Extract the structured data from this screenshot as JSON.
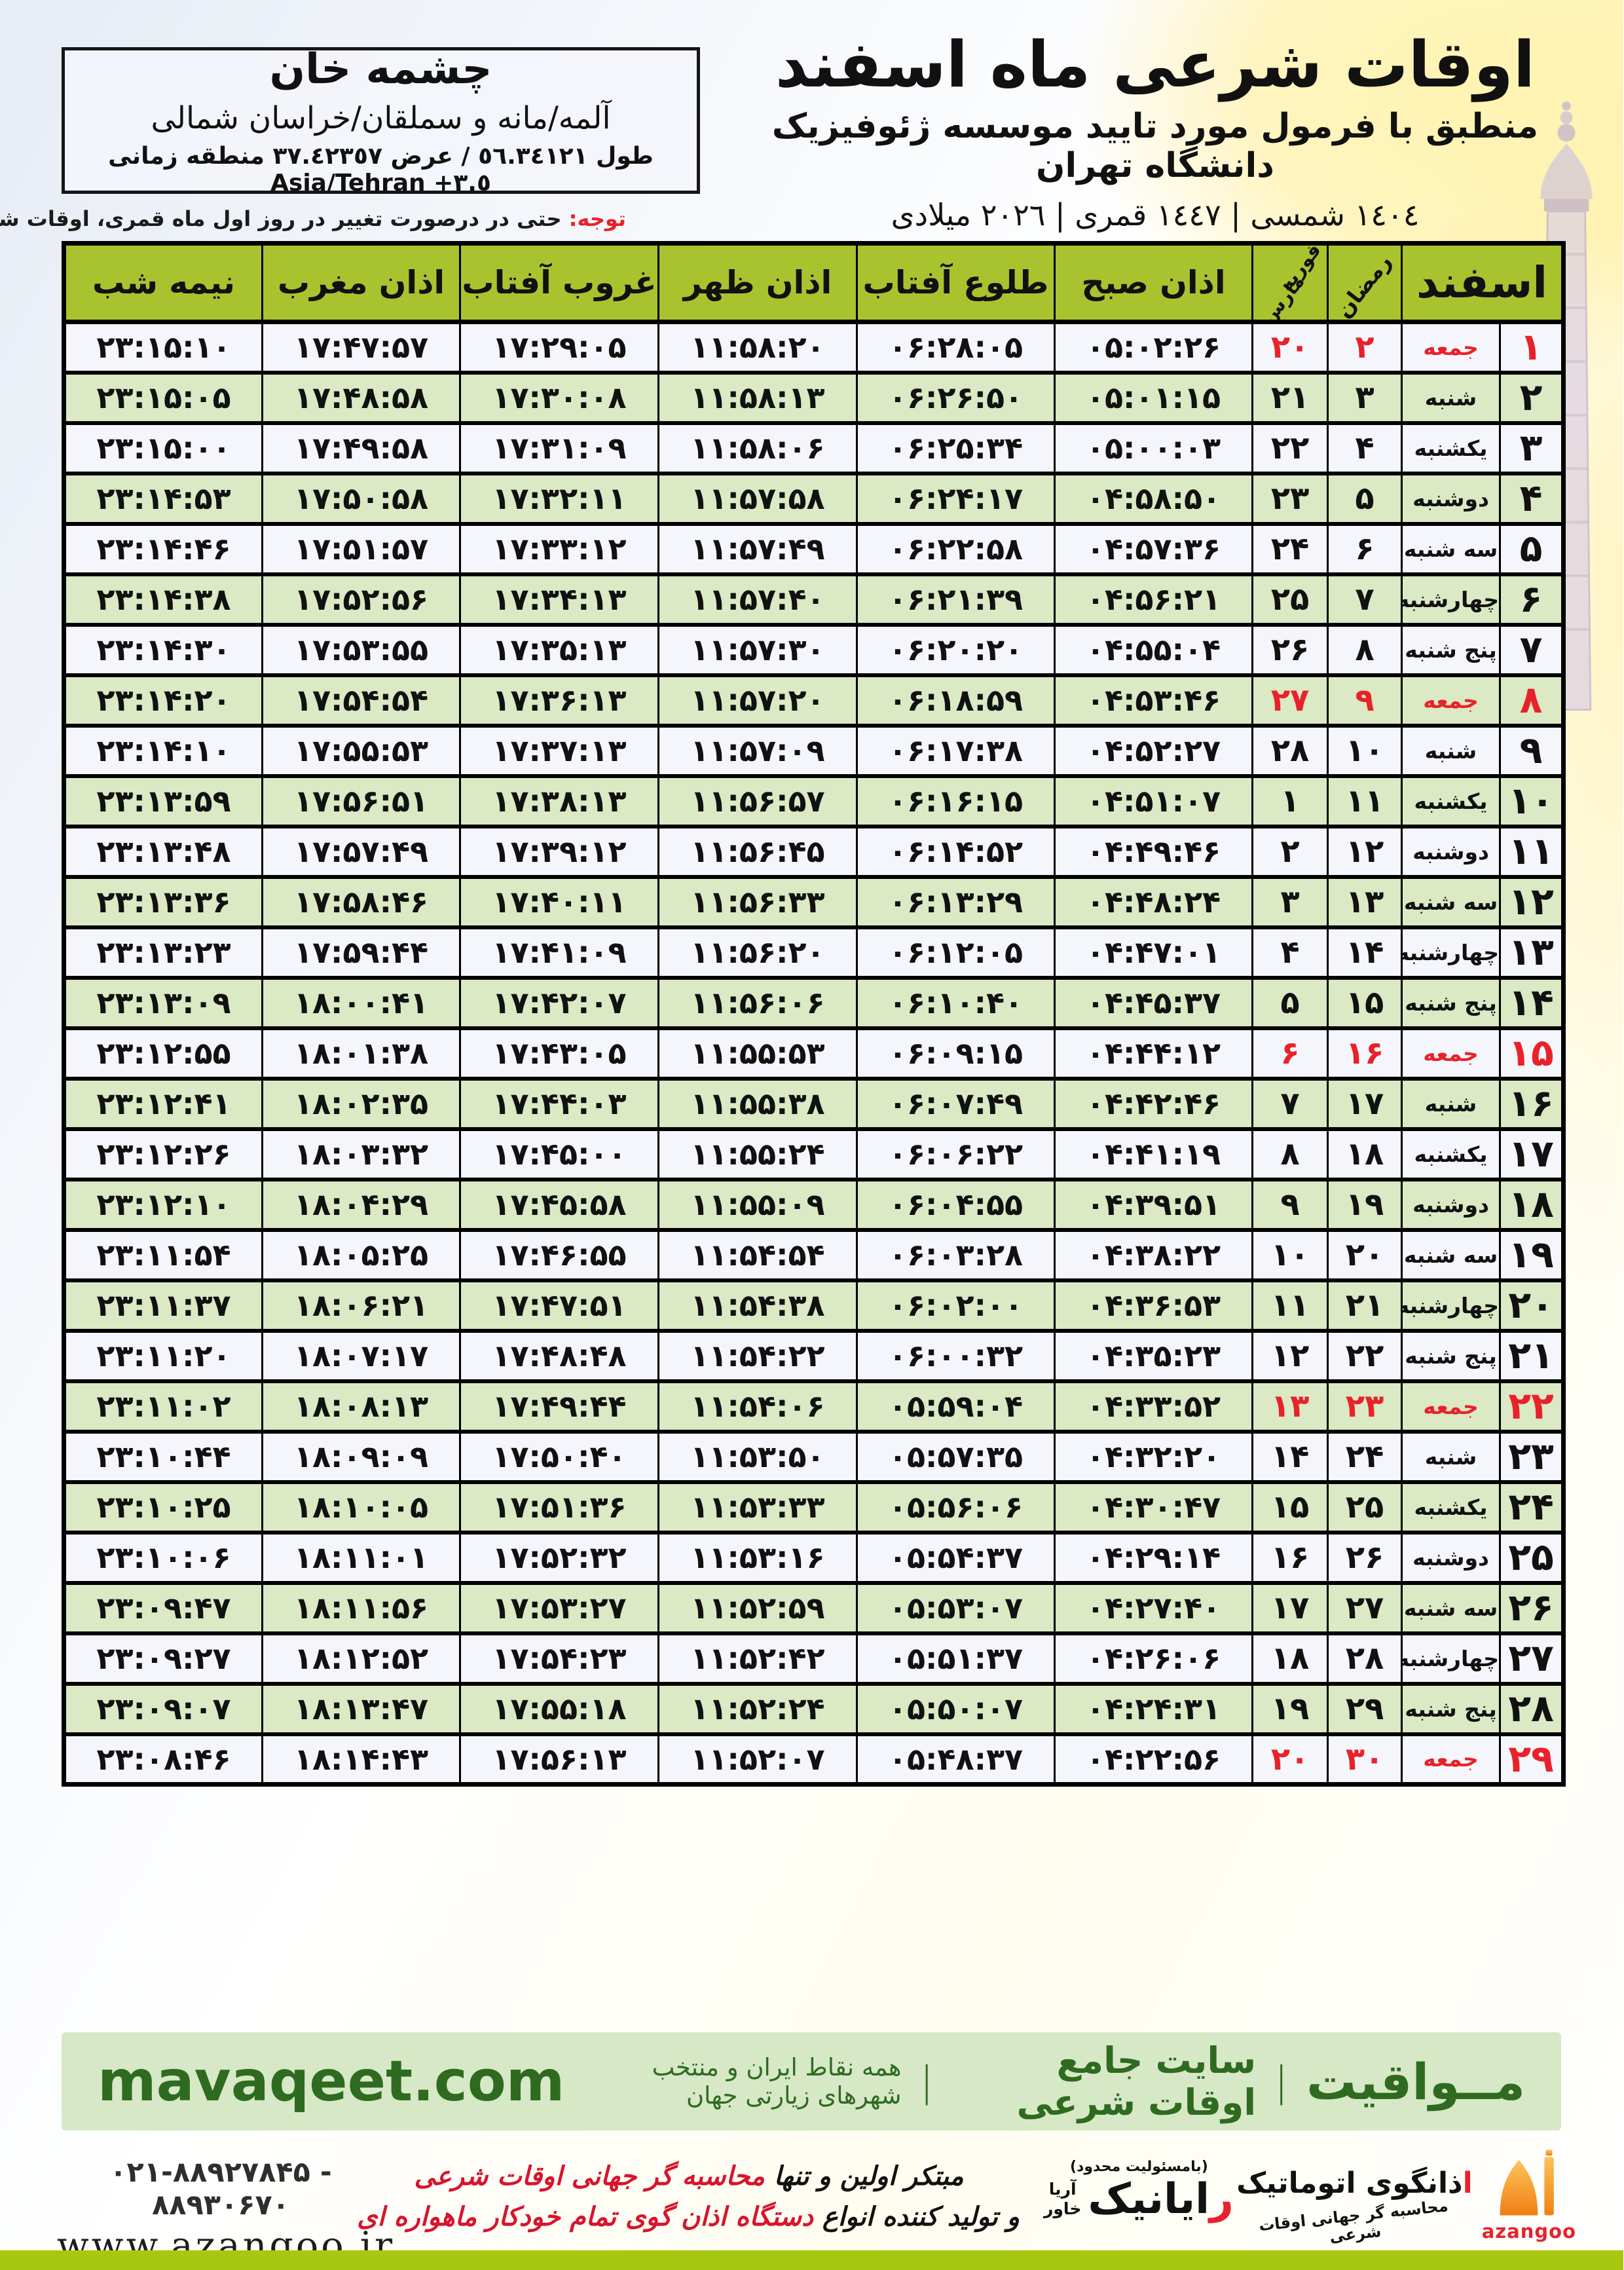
{
  "header": {
    "title": "اوقات شرعی ماه اسفند",
    "subtitle": "منطبق با فرمول مورد تایید موسسه ژئوفیزیک دانشگاه تهران",
    "years": "١٤٠٤ شمسی | ١٤٤٧ قمری | ٢٠٢٦ میلادی"
  },
  "location": {
    "name": "چشمه خان",
    "region": "آلمه/مانه و سملقان/خراسان شمالی",
    "coords": "طول ٥٦.٣٤١٢١ / عرض ٣٧.٤٢٣٥٧ منطقه زمانی",
    "timezone": "Asia/Tehran +٣.٥"
  },
  "notice": {
    "label": "توجه:",
    "text": " حتی در درصورت تغییر در روز اول ماه قمری، اوقات شرعی کماکان برای روزهای شمسی و میلادی معتبر است."
  },
  "table": {
    "headers": {
      "esfand": "اسفند",
      "ramadan": "رمضان",
      "feb": "فوریه",
      "mar": "مارس",
      "fajr": "اذان صبح",
      "sunrise": "طلوع آفتاب",
      "dhuhr": "اذان ظهر",
      "sunset": "غروب آفتاب",
      "maghrib": "اذان مغرب",
      "midnight": "نیمه شب"
    },
    "rows": [
      {
        "esfand": "۱",
        "weekday": "جمعه",
        "ramadan": "۲",
        "feb_mar": "۲۰",
        "fajr": "۰۵:۰۲:۲۶",
        "sunrise": "۰۶:۲۸:۰۵",
        "dhuhr": "۱۱:۵۸:۲۰",
        "sunset": "۱۷:۲۹:۰۵",
        "maghrib": "۱۷:۴۷:۵۷",
        "midnight": "۲۳:۱۵:۱۰",
        "holiday": true
      },
      {
        "esfand": "۲",
        "weekday": "شنبه",
        "ramadan": "۳",
        "feb_mar": "۲۱",
        "fajr": "۰۵:۰۱:۱۵",
        "sunrise": "۰۶:۲۶:۵۰",
        "dhuhr": "۱۱:۵۸:۱۳",
        "sunset": "۱۷:۳۰:۰۸",
        "maghrib": "۱۷:۴۸:۵۸",
        "midnight": "۲۳:۱۵:۰۵",
        "holiday": false
      },
      {
        "esfand": "۳",
        "weekday": "یکشنبه",
        "ramadan": "۴",
        "feb_mar": "۲۲",
        "fajr": "۰۵:۰۰:۰۳",
        "sunrise": "۰۶:۲۵:۳۴",
        "dhuhr": "۱۱:۵۸:۰۶",
        "sunset": "۱۷:۳۱:۰۹",
        "maghrib": "۱۷:۴۹:۵۸",
        "midnight": "۲۳:۱۵:۰۰",
        "holiday": false
      },
      {
        "esfand": "۴",
        "weekday": "دوشنبه",
        "ramadan": "۵",
        "feb_mar": "۲۳",
        "fajr": "۰۴:۵۸:۵۰",
        "sunrise": "۰۶:۲۴:۱۷",
        "dhuhr": "۱۱:۵۷:۵۸",
        "sunset": "۱۷:۳۲:۱۱",
        "maghrib": "۱۷:۵۰:۵۸",
        "midnight": "۲۳:۱۴:۵۳",
        "holiday": false
      },
      {
        "esfand": "۵",
        "weekday": "سه شنبه",
        "ramadan": "۶",
        "feb_mar": "۲۴",
        "fajr": "۰۴:۵۷:۳۶",
        "sunrise": "۰۶:۲۲:۵۸",
        "dhuhr": "۱۱:۵۷:۴۹",
        "sunset": "۱۷:۳۳:۱۲",
        "maghrib": "۱۷:۵۱:۵۷",
        "midnight": "۲۳:۱۴:۴۶",
        "holiday": false
      },
      {
        "esfand": "۶",
        "weekday": "چهارشنبه",
        "ramadan": "۷",
        "feb_mar": "۲۵",
        "fajr": "۰۴:۵۶:۲۱",
        "sunrise": "۰۶:۲۱:۳۹",
        "dhuhr": "۱۱:۵۷:۴۰",
        "sunset": "۱۷:۳۴:۱۳",
        "maghrib": "۱۷:۵۲:۵۶",
        "midnight": "۲۳:۱۴:۳۸",
        "holiday": false
      },
      {
        "esfand": "۷",
        "weekday": "پنج شنبه",
        "ramadan": "۸",
        "feb_mar": "۲۶",
        "fajr": "۰۴:۵۵:۰۴",
        "sunrise": "۰۶:۲۰:۲۰",
        "dhuhr": "۱۱:۵۷:۳۰",
        "sunset": "۱۷:۳۵:۱۳",
        "maghrib": "۱۷:۵۳:۵۵",
        "midnight": "۲۳:۱۴:۳۰",
        "holiday": false
      },
      {
        "esfand": "۸",
        "weekday": "جمعه",
        "ramadan": "۹",
        "feb_mar": "۲۷",
        "fajr": "۰۴:۵۳:۴۶",
        "sunrise": "۰۶:۱۸:۵۹",
        "dhuhr": "۱۱:۵۷:۲۰",
        "sunset": "۱۷:۳۶:۱۳",
        "maghrib": "۱۷:۵۴:۵۴",
        "midnight": "۲۳:۱۴:۲۰",
        "holiday": true
      },
      {
        "esfand": "۹",
        "weekday": "شنبه",
        "ramadan": "۱۰",
        "feb_mar": "۲۸",
        "fajr": "۰۴:۵۲:۲۷",
        "sunrise": "۰۶:۱۷:۳۸",
        "dhuhr": "۱۱:۵۷:۰۹",
        "sunset": "۱۷:۳۷:۱۳",
        "maghrib": "۱۷:۵۵:۵۳",
        "midnight": "۲۳:۱۴:۱۰",
        "holiday": false
      },
      {
        "esfand": "۱۰",
        "weekday": "یکشنبه",
        "ramadan": "۱۱",
        "feb_mar": "۱",
        "fajr": "۰۴:۵۱:۰۷",
        "sunrise": "۰۶:۱۶:۱۵",
        "dhuhr": "۱۱:۵۶:۵۷",
        "sunset": "۱۷:۳۸:۱۳",
        "maghrib": "۱۷:۵۶:۵۱",
        "midnight": "۲۳:۱۳:۵۹",
        "holiday": false
      },
      {
        "esfand": "۱۱",
        "weekday": "دوشنبه",
        "ramadan": "۱۲",
        "feb_mar": "۲",
        "fajr": "۰۴:۴۹:۴۶",
        "sunrise": "۰۶:۱۴:۵۲",
        "dhuhr": "۱۱:۵۶:۴۵",
        "sunset": "۱۷:۳۹:۱۲",
        "maghrib": "۱۷:۵۷:۴۹",
        "midnight": "۲۳:۱۳:۴۸",
        "holiday": false
      },
      {
        "esfand": "۱۲",
        "weekday": "سه شنبه",
        "ramadan": "۱۳",
        "feb_mar": "۳",
        "fajr": "۰۴:۴۸:۲۴",
        "sunrise": "۰۶:۱۳:۲۹",
        "dhuhr": "۱۱:۵۶:۳۳",
        "sunset": "۱۷:۴۰:۱۱",
        "maghrib": "۱۷:۵۸:۴۶",
        "midnight": "۲۳:۱۳:۳۶",
        "holiday": false
      },
      {
        "esfand": "۱۳",
        "weekday": "چهارشنبه",
        "ramadan": "۱۴",
        "feb_mar": "۴",
        "fajr": "۰۴:۴۷:۰۱",
        "sunrise": "۰۶:۱۲:۰۵",
        "dhuhr": "۱۱:۵۶:۲۰",
        "sunset": "۱۷:۴۱:۰۹",
        "maghrib": "۱۷:۵۹:۴۴",
        "midnight": "۲۳:۱۳:۲۳",
        "holiday": false
      },
      {
        "esfand": "۱۴",
        "weekday": "پنج شنبه",
        "ramadan": "۱۵",
        "feb_mar": "۵",
        "fajr": "۰۴:۴۵:۳۷",
        "sunrise": "۰۶:۱۰:۴۰",
        "dhuhr": "۱۱:۵۶:۰۶",
        "sunset": "۱۷:۴۲:۰۷",
        "maghrib": "۱۸:۰۰:۴۱",
        "midnight": "۲۳:۱۳:۰۹",
        "holiday": false
      },
      {
        "esfand": "۱۵",
        "weekday": "جمعه",
        "ramadan": "۱۶",
        "feb_mar": "۶",
        "fajr": "۰۴:۴۴:۱۲",
        "sunrise": "۰۶:۰۹:۱۵",
        "dhuhr": "۱۱:۵۵:۵۳",
        "sunset": "۱۷:۴۳:۰۵",
        "maghrib": "۱۸:۰۱:۳۸",
        "midnight": "۲۳:۱۲:۵۵",
        "holiday": true
      },
      {
        "esfand": "۱۶",
        "weekday": "شنبه",
        "ramadan": "۱۷",
        "feb_mar": "۷",
        "fajr": "۰۴:۴۲:۴۶",
        "sunrise": "۰۶:۰۷:۴۹",
        "dhuhr": "۱۱:۵۵:۳۸",
        "sunset": "۱۷:۴۴:۰۳",
        "maghrib": "۱۸:۰۲:۳۵",
        "midnight": "۲۳:۱۲:۴۱",
        "holiday": false
      },
      {
        "esfand": "۱۷",
        "weekday": "یکشنبه",
        "ramadan": "۱۸",
        "feb_mar": "۸",
        "fajr": "۰۴:۴۱:۱۹",
        "sunrise": "۰۶:۰۶:۲۲",
        "dhuhr": "۱۱:۵۵:۲۴",
        "sunset": "۱۷:۴۵:۰۰",
        "maghrib": "۱۸:۰۳:۳۲",
        "midnight": "۲۳:۱۲:۲۶",
        "holiday": false
      },
      {
        "esfand": "۱۸",
        "weekday": "دوشنبه",
        "ramadan": "۱۹",
        "feb_mar": "۹",
        "fajr": "۰۴:۳۹:۵۱",
        "sunrise": "۰۶:۰۴:۵۵",
        "dhuhr": "۱۱:۵۵:۰۹",
        "sunset": "۱۷:۴۵:۵۸",
        "maghrib": "۱۸:۰۴:۲۹",
        "midnight": "۲۳:۱۲:۱۰",
        "holiday": false
      },
      {
        "esfand": "۱۹",
        "weekday": "سه شنبه",
        "ramadan": "۲۰",
        "feb_mar": "۱۰",
        "fajr": "۰۴:۳۸:۲۲",
        "sunrise": "۰۶:۰۳:۲۸",
        "dhuhr": "۱۱:۵۴:۵۴",
        "sunset": "۱۷:۴۶:۵۵",
        "maghrib": "۱۸:۰۵:۲۵",
        "midnight": "۲۳:۱۱:۵۴",
        "holiday": false
      },
      {
        "esfand": "۲۰",
        "weekday": "چهارشنبه",
        "ramadan": "۲۱",
        "feb_mar": "۱۱",
        "fajr": "۰۴:۳۶:۵۳",
        "sunrise": "۰۶:۰۲:۰۰",
        "dhuhr": "۱۱:۵۴:۳۸",
        "sunset": "۱۷:۴۷:۵۱",
        "maghrib": "۱۸:۰۶:۲۱",
        "midnight": "۲۳:۱۱:۳۷",
        "holiday": false
      },
      {
        "esfand": "۲۱",
        "weekday": "پنج شنبه",
        "ramadan": "۲۲",
        "feb_mar": "۱۲",
        "fajr": "۰۴:۳۵:۲۳",
        "sunrise": "۰۶:۰۰:۳۲",
        "dhuhr": "۱۱:۵۴:۲۲",
        "sunset": "۱۷:۴۸:۴۸",
        "maghrib": "۱۸:۰۷:۱۷",
        "midnight": "۲۳:۱۱:۲۰",
        "holiday": false
      },
      {
        "esfand": "۲۲",
        "weekday": "جمعه",
        "ramadan": "۲۳",
        "feb_mar": "۱۳",
        "fajr": "۰۴:۳۳:۵۲",
        "sunrise": "۰۵:۵۹:۰۴",
        "dhuhr": "۱۱:۵۴:۰۶",
        "sunset": "۱۷:۴۹:۴۴",
        "maghrib": "۱۸:۰۸:۱۳",
        "midnight": "۲۳:۱۱:۰۲",
        "holiday": true
      },
      {
        "esfand": "۲۳",
        "weekday": "شنبه",
        "ramadan": "۲۴",
        "feb_mar": "۱۴",
        "fajr": "۰۴:۳۲:۲۰",
        "sunrise": "۰۵:۵۷:۳۵",
        "dhuhr": "۱۱:۵۳:۵۰",
        "sunset": "۱۷:۵۰:۴۰",
        "maghrib": "۱۸:۰۹:۰۹",
        "midnight": "۲۳:۱۰:۴۴",
        "holiday": false
      },
      {
        "esfand": "۲۴",
        "weekday": "یکشنبه",
        "ramadan": "۲۵",
        "feb_mar": "۱۵",
        "fajr": "۰۴:۳۰:۴۷",
        "sunrise": "۰۵:۵۶:۰۶",
        "dhuhr": "۱۱:۵۳:۳۳",
        "sunset": "۱۷:۵۱:۳۶",
        "maghrib": "۱۸:۱۰:۰۵",
        "midnight": "۲۳:۱۰:۲۵",
        "holiday": false
      },
      {
        "esfand": "۲۵",
        "weekday": "دوشنبه",
        "ramadan": "۲۶",
        "feb_mar": "۱۶",
        "fajr": "۰۴:۲۹:۱۴",
        "sunrise": "۰۵:۵۴:۳۷",
        "dhuhr": "۱۱:۵۳:۱۶",
        "sunset": "۱۷:۵۲:۳۲",
        "maghrib": "۱۸:۱۱:۰۱",
        "midnight": "۲۳:۱۰:۰۶",
        "holiday": false
      },
      {
        "esfand": "۲۶",
        "weekday": "سه شنبه",
        "ramadan": "۲۷",
        "feb_mar": "۱۷",
        "fajr": "۰۴:۲۷:۴۰",
        "sunrise": "۰۵:۵۳:۰۷",
        "dhuhr": "۱۱:۵۲:۵۹",
        "sunset": "۱۷:۵۳:۲۷",
        "maghrib": "۱۸:۱۱:۵۶",
        "midnight": "۲۳:۰۹:۴۷",
        "holiday": false
      },
      {
        "esfand": "۲۷",
        "weekday": "چهارشنبه",
        "ramadan": "۲۸",
        "feb_mar": "۱۸",
        "fajr": "۰۴:۲۶:۰۶",
        "sunrise": "۰۵:۵۱:۳۷",
        "dhuhr": "۱۱:۵۲:۴۲",
        "sunset": "۱۷:۵۴:۲۳",
        "maghrib": "۱۸:۱۲:۵۲",
        "midnight": "۲۳:۰۹:۲۷",
        "holiday": false
      },
      {
        "esfand": "۲۸",
        "weekday": "پنج شنبه",
        "ramadan": "۲۹",
        "feb_mar": "۱۹",
        "fajr": "۰۴:۲۴:۳۱",
        "sunrise": "۰۵:۵۰:۰۷",
        "dhuhr": "۱۱:۵۲:۲۴",
        "sunset": "۱۷:۵۵:۱۸",
        "maghrib": "۱۸:۱۳:۴۷",
        "midnight": "۲۳:۰۹:۰۷",
        "holiday": false
      },
      {
        "esfand": "۲۹",
        "weekday": "جمعه",
        "ramadan": "۳۰",
        "feb_mar": "۲۰",
        "fajr": "۰۴:۲۲:۵۶",
        "sunrise": "۰۵:۴۸:۳۷",
        "dhuhr": "۱۱:۵۲:۰۷",
        "sunset": "۱۷:۵۶:۱۳",
        "maghrib": "۱۸:۱۴:۴۳",
        "midnight": "۲۳:۰۸:۴۶",
        "holiday": true
      }
    ]
  },
  "banner": {
    "brand": "مــواقیت",
    "divider": "|",
    "tagline": "سایت جامع اوقات شرعی",
    "subtitle": "همه نقاط ایران و منتخب شهرهای زیارتی جهان",
    "domain": "mavaqeet.com"
  },
  "footer": {
    "phones": "۰۲۱-۸۸۹۲۷۸۴۵ - ۸۸۹۳۰۶۷۰",
    "website": "www.azangoo.ir",
    "line1_black": "مبتکر اولین و تنها ",
    "line1_red": "محاسبه گر جهانی اوقات شرعی",
    "line2_black": "و تولید کننده انواع ",
    "line2_red": "دستگاه اذان گوی تمام خودکار ماهواره ای",
    "rayanik": {
      "note": "(بامسئولیت محدود)",
      "initial": "ر",
      "name": "ایانیک",
      "sub_top": "آریا",
      "sub_bottom": "خاور"
    },
    "azangoo": {
      "logo_initial": "ا",
      "logo_text": "ذانگوی اتوماتیک",
      "logo_sub": "محاسبه گر جهانی اوقات شرعی",
      "brand": "azangoo"
    }
  },
  "colors": {
    "header_green": "#a9c32f",
    "row_green": "#dbe9c4",
    "row_light": "#f4f6fb",
    "holiday_red": "#e8222a",
    "banner_bg": "#d7e8c6",
    "banner_text_green": "#2e6b20",
    "bottom_bar_green": "#a8c80f",
    "dome_orange": "#f6871f"
  }
}
